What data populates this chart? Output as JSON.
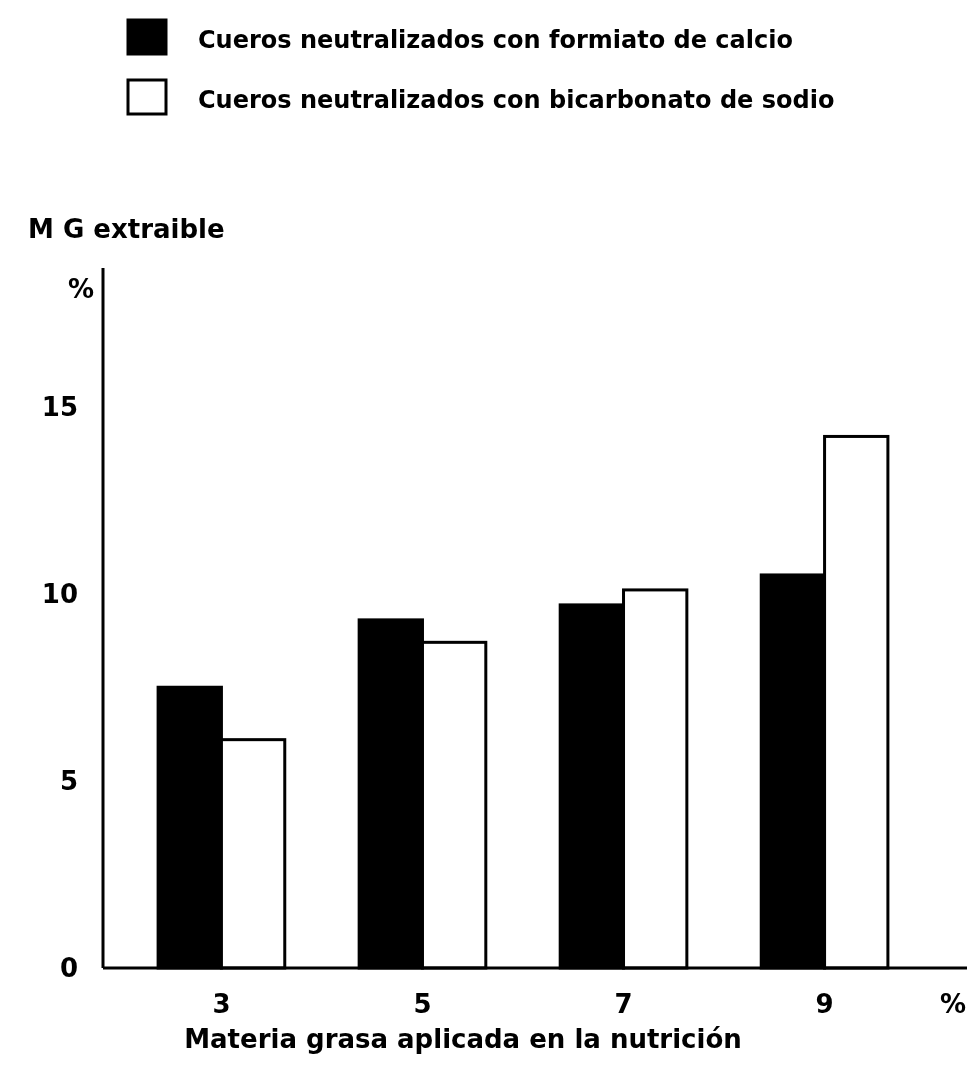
{
  "chart_data": {
    "type": "bar",
    "xlabel": "Materia grasa aplicada en la nutrición",
    "ylabel": "M G extraible",
    "annotations": [
      "%",
      "%"
    ],
    "categories": [
      "3",
      "5",
      "7",
      "9"
    ],
    "series": [
      {
        "name": "Cueros neutralizados con formiato de calcio",
        "color": "#000000",
        "values": [
          7.5,
          9.3,
          9.7,
          10.5
        ]
      },
      {
        "name": "Cueros neutralizados con bicarbonato de sodio",
        "color": "#ffffff",
        "values": [
          6.1,
          8.7,
          10.1,
          14.2
        ]
      }
    ],
    "ylim": [
      0,
      18.7
    ],
    "yticks": [
      0,
      5,
      10,
      15
    ],
    "legend": "top left",
    "grid": false
  }
}
